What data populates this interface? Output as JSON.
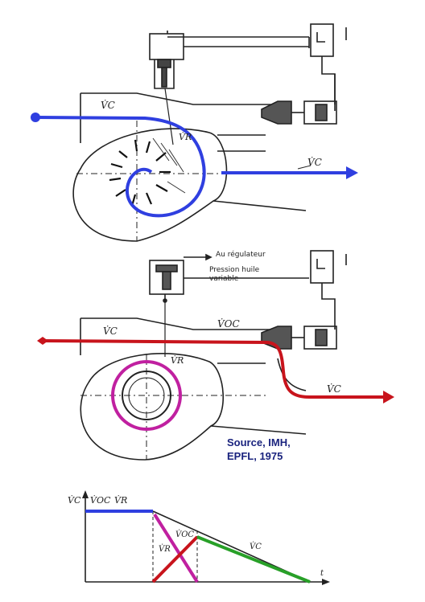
{
  "top_figure": {
    "labels": {
      "vc_in": "V̇C",
      "vr": "V̇R",
      "vc_out": "V̇C"
    }
  },
  "middle_figure": {
    "labels": {
      "au_regulateur": "Au régulateur",
      "pression_huile_1": "Pression huile",
      "pression_huile_2": "variable",
      "vc_in": "V̇C",
      "voc": "V̇OC",
      "vr": "V̇R",
      "vc_out": "V̇C"
    }
  },
  "source": {
    "line1": "Source, IMH,",
    "line2": "EPFL, 1975"
  },
  "bottom_chart": {
    "y_labels": [
      "V̇C",
      "V̇OC",
      "V̇R"
    ],
    "curve_labels": {
      "vr": "V̇R",
      "voc": "V̇OC",
      "vc": "V̇C"
    },
    "x_label": "t"
  },
  "colors": {
    "blue_flow": "#2f3fe0",
    "red_flow": "#c8141c",
    "magenta": "#c020a0",
    "green": "#28a028",
    "line": "#222222"
  }
}
